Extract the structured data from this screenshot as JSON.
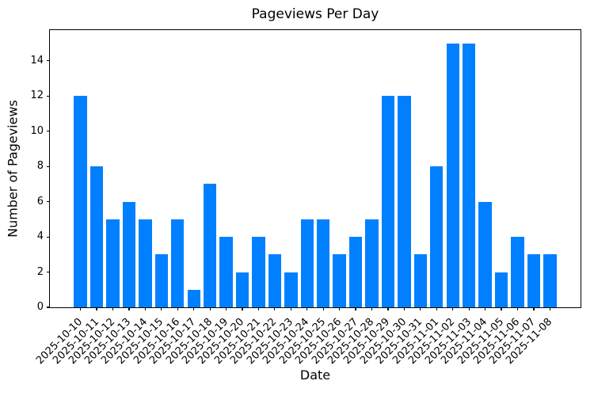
{
  "chart_data": {
    "type": "bar",
    "title": "Pageviews Per Day",
    "xlabel": "Date",
    "ylabel": "Number of Pageviews",
    "categories": [
      "2025-10-10",
      "2025-10-11",
      "2025-10-12",
      "2025-10-13",
      "2025-10-14",
      "2025-10-15",
      "2025-10-16",
      "2025-10-17",
      "2025-10-18",
      "2025-10-19",
      "2025-10-20",
      "2025-10-21",
      "2025-10-22",
      "2025-10-23",
      "2025-10-24",
      "2025-10-25",
      "2025-10-26",
      "2025-10-27",
      "2025-10-28",
      "2025-10-29",
      "2025-10-30",
      "2025-10-31",
      "2025-11-01",
      "2025-11-02",
      "2025-11-03",
      "2025-11-04",
      "2025-11-05",
      "2025-11-06",
      "2025-11-07",
      "2025-11-08"
    ],
    "values": [
      12,
      8,
      5,
      6,
      5,
      3,
      5,
      1,
      7,
      4,
      2,
      4,
      3,
      2,
      5,
      5,
      3,
      4,
      5,
      12,
      12,
      3,
      8,
      15,
      15,
      6,
      2,
      4,
      3,
      3
    ],
    "yticks": [
      0,
      2,
      4,
      6,
      8,
      10,
      12,
      14
    ],
    "ylim": [
      0,
      15.75
    ],
    "xtick_rotation": 45,
    "grid": false,
    "legend": "none",
    "bar_color": "#0080ff",
    "axis_color": "#000000",
    "text_color": "#000000",
    "background_color": "#ffffff"
  }
}
